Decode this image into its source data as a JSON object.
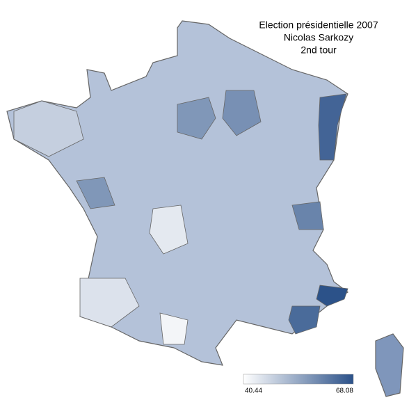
{
  "chart_data": {
    "type": "choropleth",
    "title_lines": [
      "Election présidentielle 2007",
      "Nicolas Sarkozy",
      "2nd tour"
    ],
    "values": [
      68,
      64,
      65,
      57,
      58,
      60,
      45,
      44,
      48,
      42,
      57
    ],
    "colorbar": {
      "min": 40.44,
      "max": 68.08,
      "colors": [
        "#ffffff",
        "#2b5189"
      ]
    }
  }
}
